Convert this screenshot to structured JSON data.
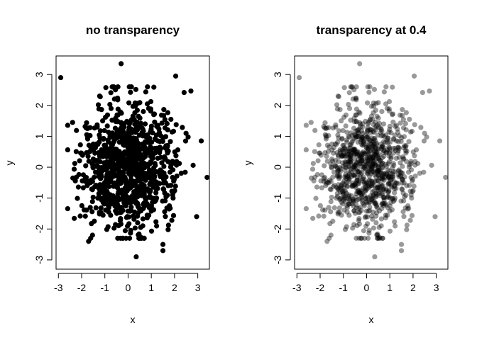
{
  "chart_data": [
    {
      "type": "scatter",
      "title": "no transparency",
      "xlabel": "x",
      "ylabel": "y",
      "xlim": [
        -3.1,
        3.5
      ],
      "ylim": [
        -3.3,
        3.6
      ],
      "xticks": [
        -3,
        -2,
        -1,
        0,
        1,
        2,
        3
      ],
      "yticks": [
        -3,
        -2,
        -1,
        0,
        1,
        2,
        3
      ],
      "xtick_labels": [
        "-3",
        "-2",
        "-1",
        "0",
        "1",
        "2",
        "3"
      ],
      "ytick_labels": [
        "-3",
        "-2",
        "-1",
        "0",
        "1",
        "2",
        "3"
      ],
      "point_color": "#000000",
      "point_alpha": 1.0,
      "n_points": 1000,
      "distribution": "standard normal (x ~ N(0,1), y ~ N(0,1))",
      "outlier_points": [
        [
          -2.9,
          2.9
        ],
        [
          -0.3,
          3.35
        ],
        [
          2.05,
          2.95
        ],
        [
          3.4,
          -0.33
        ],
        [
          3.15,
          0.85
        ],
        [
          2.95,
          -1.6
        ],
        [
          0.35,
          -2.9
        ],
        [
          -1.7,
          -2.4
        ],
        [
          1.5,
          -2.7
        ],
        [
          1.5,
          -2.5
        ]
      ]
    },
    {
      "type": "scatter",
      "title": "transparency at 0.4",
      "xlabel": "x",
      "ylabel": "y",
      "xlim": [
        -3.1,
        3.5
      ],
      "ylim": [
        -3.3,
        3.6
      ],
      "xticks": [
        -3,
        -2,
        -1,
        0,
        1,
        2,
        3
      ],
      "yticks": [
        -3,
        -2,
        -1,
        0,
        1,
        2,
        3
      ],
      "xtick_labels": [
        "-3",
        "-2",
        "-1",
        "0",
        "1",
        "2",
        "3"
      ],
      "ytick_labels": [
        "-3",
        "-2",
        "-1",
        "0",
        "1",
        "2",
        "3"
      ],
      "point_color": "#000000",
      "point_alpha": 0.4,
      "n_points": 1000,
      "distribution": "standard normal (x ~ N(0,1), y ~ N(0,1))",
      "outlier_points": [
        [
          -2.9,
          2.9
        ],
        [
          -0.3,
          3.35
        ],
        [
          2.05,
          2.95
        ],
        [
          3.4,
          -0.33
        ],
        [
          3.15,
          0.85
        ],
        [
          2.95,
          -1.6
        ],
        [
          0.35,
          -2.9
        ],
        [
          -1.7,
          -2.4
        ],
        [
          1.5,
          -2.7
        ],
        [
          1.5,
          -2.5
        ]
      ]
    }
  ]
}
